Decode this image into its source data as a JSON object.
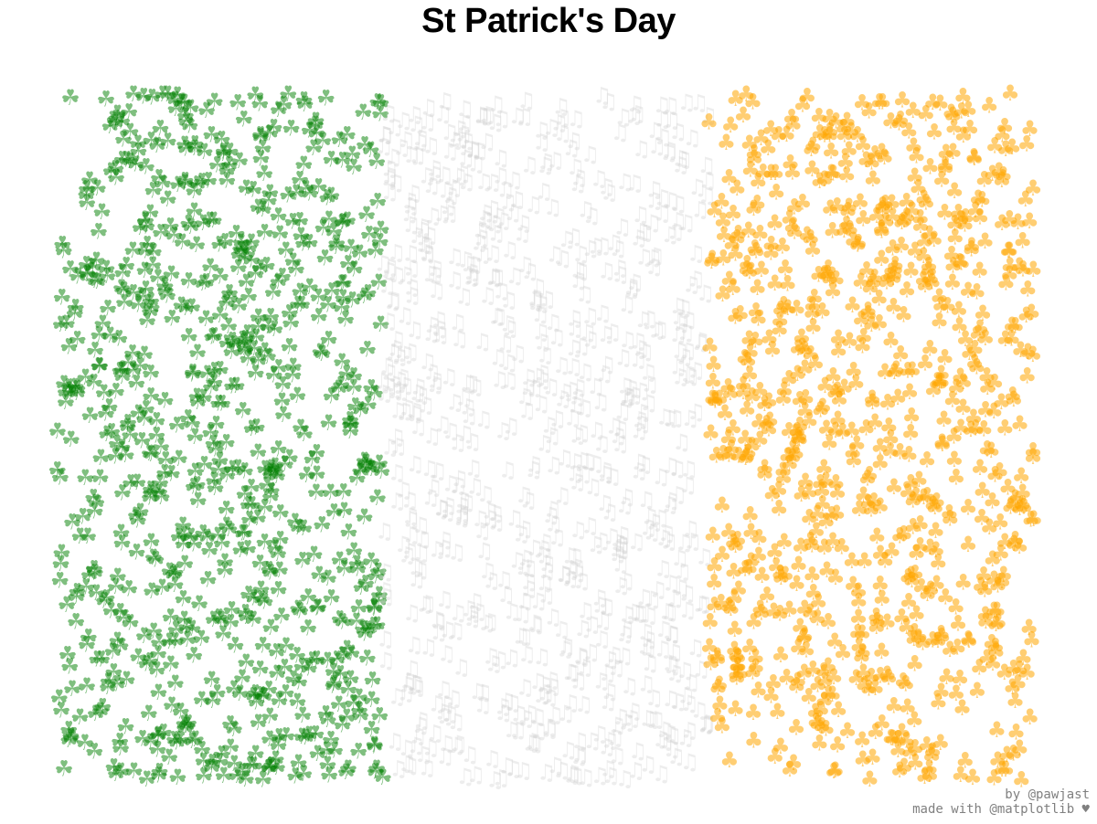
{
  "chart_data": {
    "type": "scatter",
    "title": "St Patrick's Day",
    "axes_visible": false,
    "series": [
      {
        "symbol": "☘",
        "marker": "shamrock-icon",
        "color": "#008000",
        "alpha": 0.5,
        "x_range": [
          0.0,
          1.0
        ],
        "y_range": [
          0.0,
          1.0
        ],
        "count": 800
      },
      {
        "symbol": "♫",
        "marker": "music-note-icon",
        "color": "#d3d3d3",
        "alpha": 0.4,
        "x_range": [
          1.0,
          2.0
        ],
        "y_range": [
          0.0,
          1.0
        ],
        "count": 800
      },
      {
        "symbol": "♣",
        "marker": "club-icon",
        "color": "#ffa500",
        "alpha": 0.55,
        "x_range": [
          2.0,
          3.0
        ],
        "y_range": [
          0.0,
          1.0
        ],
        "count": 800
      }
    ]
  },
  "credits": {
    "line1": "by @pawjast",
    "line2": "made with @matplotlib ♥"
  }
}
